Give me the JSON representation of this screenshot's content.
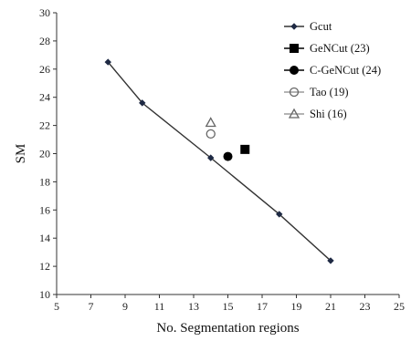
{
  "chart_data": {
    "type": "scatter",
    "xlabel": "No. Segmentation regions",
    "ylabel": "SM",
    "xlim": [
      5,
      25
    ],
    "ylim": [
      10,
      30
    ],
    "x_ticks": [
      5,
      7,
      9,
      11,
      13,
      15,
      17,
      19,
      21,
      23,
      25
    ],
    "y_ticks": [
      10,
      12,
      14,
      16,
      18,
      20,
      22,
      24,
      26,
      28,
      30
    ],
    "grid": false,
    "legend_position": "top-right",
    "series": [
      {
        "name": "Gcut",
        "kind": "line-diamond",
        "color": "#1f2a44",
        "points": [
          [
            8,
            26.5
          ],
          [
            10,
            23.6
          ],
          [
            14,
            19.7
          ],
          [
            18,
            15.7
          ],
          [
            21,
            12.4
          ]
        ]
      },
      {
        "name": "GeNCut (23)",
        "kind": "square-filled",
        "color": "#000000",
        "points": [
          [
            16,
            20.3
          ]
        ]
      },
      {
        "name": "C-GeNCut (24)",
        "kind": "circle-filled",
        "color": "#000000",
        "points": [
          [
            15,
            19.8
          ]
        ]
      },
      {
        "name": "Tao (19)",
        "kind": "circle-open",
        "color": "#666666",
        "points": [
          [
            14,
            21.4
          ]
        ]
      },
      {
        "name": "Shi (16)",
        "kind": "triangle-open",
        "color": "#666666",
        "points": [
          [
            14,
            22.2
          ]
        ]
      }
    ]
  }
}
